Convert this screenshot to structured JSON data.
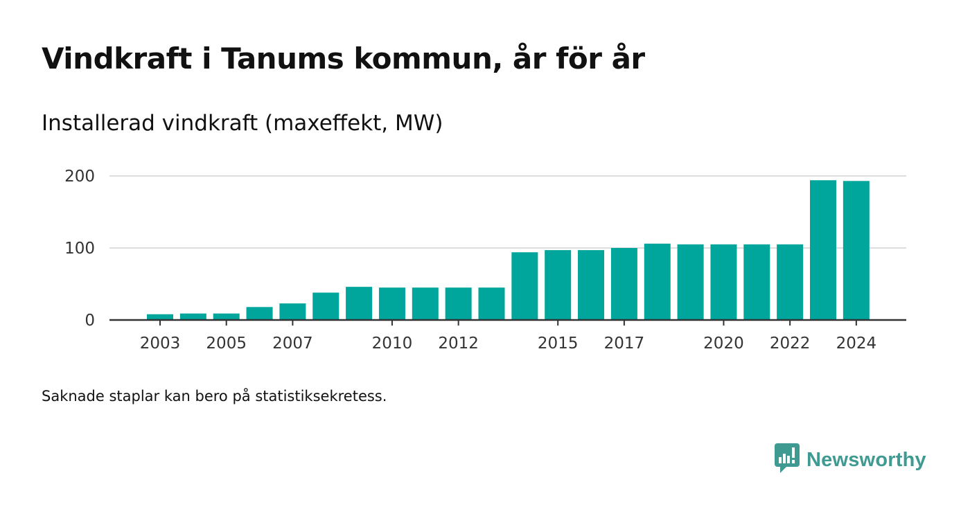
{
  "title": "Vindkraft i Tanums kommun, år för år",
  "subtitle": "Installerad vindkraft (maxeffekt, MW)",
  "footnote": "Saknade staplar kan bero på statistiksekretess.",
  "brand": {
    "name": "Newsworthy",
    "icon": "newsworthy-logo-icon",
    "color": "#3f9a92"
  },
  "colors": {
    "bar": "#00a59b",
    "grid": "#dddddd",
    "axis": "#333333"
  },
  "chart_data": {
    "type": "bar",
    "title": "Vindkraft i Tanums kommun, år för år",
    "subtitle": "Installerad vindkraft (maxeffekt, MW)",
    "xlabel": "",
    "ylabel": "",
    "ylim": [
      0,
      210
    ],
    "yticks": [
      0,
      100,
      200
    ],
    "categories": [
      2003,
      2004,
      2005,
      2006,
      2007,
      2008,
      2009,
      2010,
      2011,
      2012,
      2013,
      2014,
      2015,
      2016,
      2017,
      2018,
      2019,
      2020,
      2021,
      2022,
      2023,
      2024
    ],
    "xtick_labels": [
      "2003",
      "2005",
      "2007",
      "2010",
      "2012",
      "2015",
      "2017",
      "2020",
      "2022",
      "2024"
    ],
    "values": [
      8,
      9,
      9,
      18,
      23,
      38,
      46,
      45,
      45,
      45,
      45,
      94,
      97,
      97,
      100,
      106,
      105,
      105,
      105,
      105,
      194,
      193
    ],
    "grid": true,
    "legend": "none"
  }
}
